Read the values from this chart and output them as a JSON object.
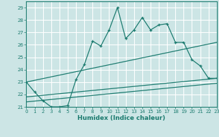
{
  "title": "",
  "xlabel": "Humidex (Indice chaleur)",
  "xlim": [
    0,
    23
  ],
  "ylim": [
    21,
    29.5
  ],
  "yticks": [
    21,
    22,
    23,
    24,
    25,
    26,
    27,
    28,
    29
  ],
  "xticks": [
    0,
    1,
    2,
    3,
    4,
    5,
    6,
    7,
    8,
    9,
    10,
    11,
    12,
    13,
    14,
    15,
    16,
    17,
    18,
    19,
    20,
    21,
    22,
    23
  ],
  "background_color": "#cce5e5",
  "grid_color": "#ffffff",
  "line_color": "#1a7a6e",
  "line1_x": [
    0,
    1,
    2,
    3,
    4,
    5,
    6,
    7,
    8,
    9,
    10,
    11,
    12,
    13,
    14,
    15,
    16,
    17,
    18,
    19,
    20,
    21,
    22,
    23
  ],
  "line1_y": [
    23.0,
    22.2,
    21.5,
    21.0,
    21.0,
    21.1,
    23.2,
    24.4,
    26.3,
    25.9,
    27.2,
    29.0,
    26.5,
    27.2,
    28.2,
    27.2,
    27.6,
    27.7,
    26.2,
    26.2,
    24.8,
    24.3,
    23.3,
    23.3
  ],
  "line2_x": [
    0,
    23
  ],
  "line2_y": [
    23.0,
    26.2
  ],
  "line3_x": [
    0,
    23
  ],
  "line3_y": [
    21.8,
    23.3
  ],
  "line4_x": [
    0,
    23
  ],
  "line4_y": [
    21.4,
    22.9
  ]
}
